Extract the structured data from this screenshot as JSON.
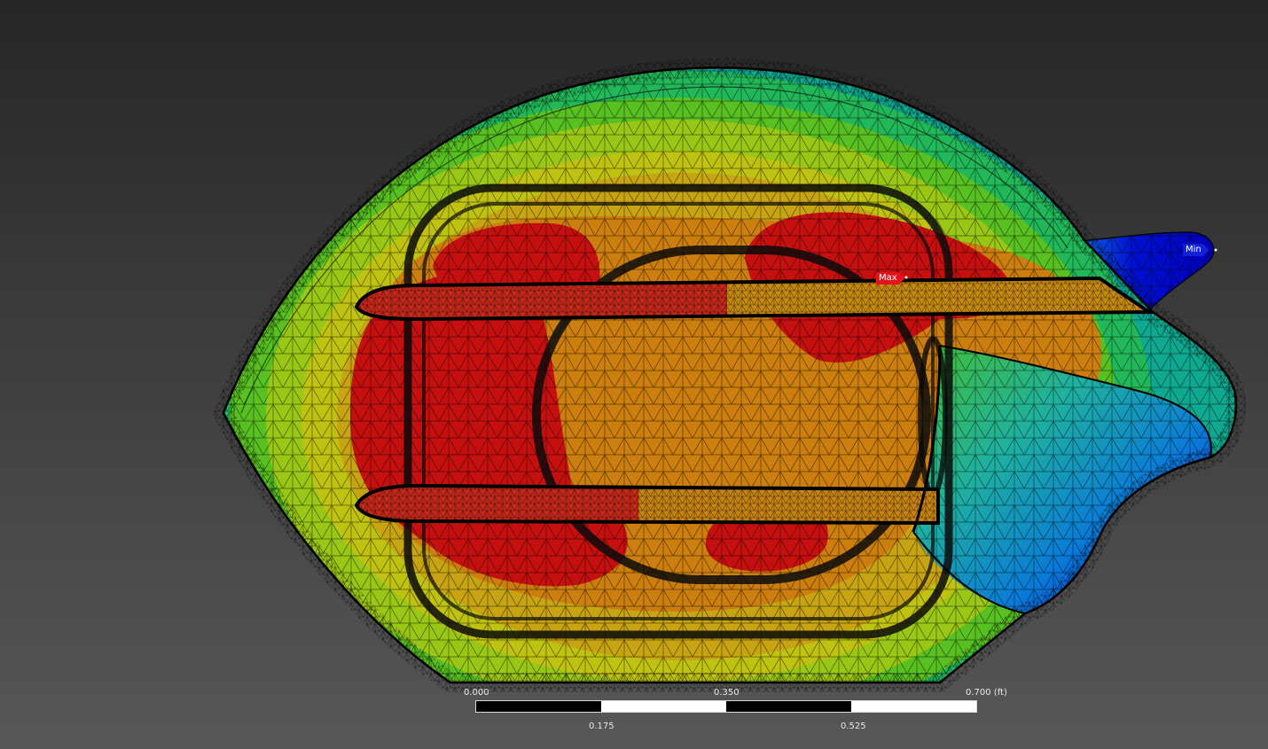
{
  "viewport": {
    "background_top": "#262626",
    "background_bottom": "#575757"
  },
  "probes": {
    "max_label": "Max",
    "min_label": "Min",
    "max_color": "#e3121b",
    "min_color": "#1420d8"
  },
  "contour_colors": [
    "#0000c8",
    "#00a0e0",
    "#22c060",
    "#7fcb17",
    "#c8c810",
    "#c89b13",
    "#cc6a0c",
    "#c61010"
  ],
  "scale_bar": {
    "top_labels": [
      "0.000",
      "0.350",
      "0.700 (ft)"
    ],
    "bottom_labels": [
      "0.175",
      "0.525"
    ]
  }
}
